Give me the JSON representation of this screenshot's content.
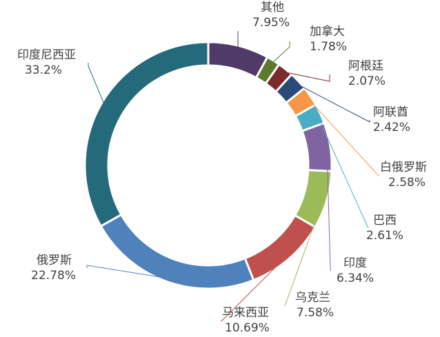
{
  "chart_data": {
    "type": "pie",
    "donut": true,
    "legend": "none",
    "slices": [
      {
        "label": "其他",
        "value": 7.95,
        "value_text": "7.95%",
        "color": "#4f3a68",
        "leader_color": "#4f3a68"
      },
      {
        "label": "加拿大",
        "value": 1.78,
        "value_text": "1.78%",
        "color": "#5b7a2e",
        "leader_color": "#5b7a2e"
      },
      {
        "label": "阿根廷",
        "value": 2.07,
        "value_text": "2.07%",
        "color": "#7a2a2a",
        "leader_color": "#7a2a2a"
      },
      {
        "label": "阿联酋",
        "value": 2.42,
        "value_text": "2.42%",
        "color": "#2b4a7a",
        "leader_color": "#2b4a7a"
      },
      {
        "label": "白俄罗斯",
        "value": 2.58,
        "value_text": "2.58%",
        "color": "#f79646",
        "leader_color": "#f79646"
      },
      {
        "label": "巴西",
        "value": 2.61,
        "value_text": "2.61%",
        "color": "#4bacc6",
        "leader_color": "#4bacc6"
      },
      {
        "label": "印度",
        "value": 6.34,
        "value_text": "6.34%",
        "color": "#8064a2",
        "leader_color": "#8064a2"
      },
      {
        "label": "乌克兰",
        "value": 7.58,
        "value_text": "7.58%",
        "color": "#9bbb59",
        "leader_color": "#9bbb59"
      },
      {
        "label": "马来西亚",
        "value": 10.69,
        "value_text": "10.69%",
        "color": "#c0504d",
        "leader_color": "#c0504d"
      },
      {
        "label": "俄罗斯",
        "value": 22.78,
        "value_text": "22.78%",
        "color": "#4f81bd",
        "leader_color": "#4f81bd"
      },
      {
        "label": "印度尼西亚",
        "value": 33.2,
        "value_text": "33.2%",
        "color": "#256a7a",
        "leader_color": "#256a7a"
      }
    ]
  }
}
